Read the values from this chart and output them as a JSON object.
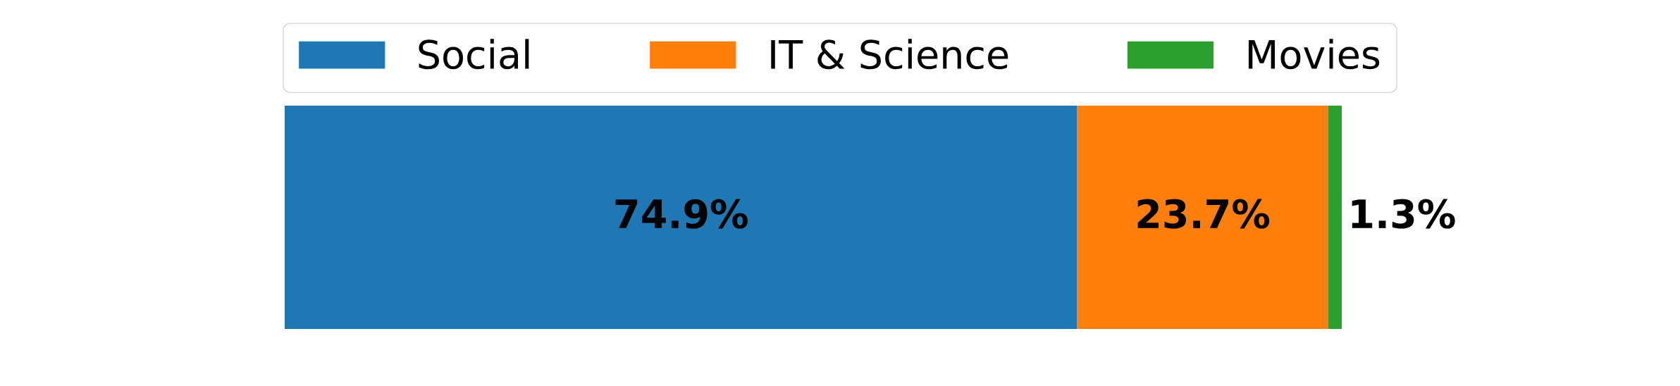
{
  "chart_data": {
    "type": "bar",
    "orientation": "horizontal",
    "stacked": true,
    "categories": [
      null
    ],
    "legend": "top",
    "tick_labels": false,
    "series": [
      {
        "name": "Social",
        "color": "#1f77b4",
        "values": [
          74.9
        ],
        "value_labels": [
          "74.9%"
        ]
      },
      {
        "name": "IT & Science",
        "color": "#ff7f0e",
        "values": [
          23.7
        ],
        "value_labels": [
          "23.7%"
        ]
      },
      {
        "name": "Movies",
        "color": "#2ca02c",
        "values": [
          1.3
        ],
        "value_labels": [
          "1.3%"
        ]
      }
    ]
  }
}
